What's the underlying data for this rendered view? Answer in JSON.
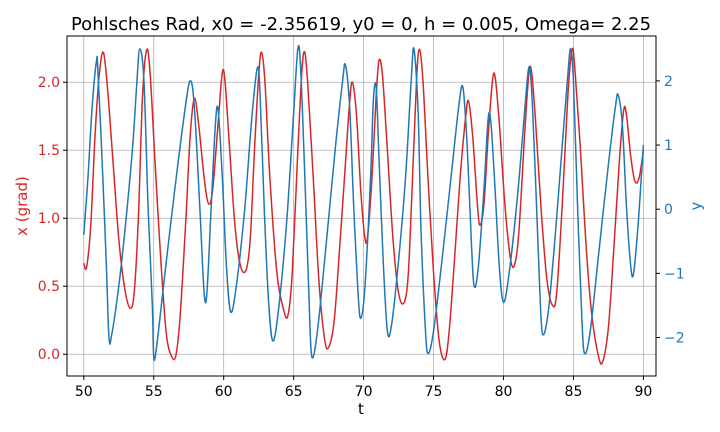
{
  "chart_data": {
    "type": "line",
    "title": "Pohlsches Rad, x0 = -2.35619, y0 = 0, h = 0.005, Omega= 2.25",
    "xlabel": "t",
    "ylabel_left": "x (grad)",
    "ylabel_right": "y",
    "xlim": [
      48.8,
      90.9
    ],
    "ylim_left": [
      -0.16,
      2.34
    ],
    "ylim_right": [
      -2.6,
      2.7
    ],
    "grid": true,
    "x_ticks": [
      50,
      55,
      60,
      65,
      70,
      75,
      80,
      85,
      90
    ],
    "y_left_ticks": [
      0.0,
      0.5,
      1.0,
      1.5,
      2.0
    ],
    "y_right_ticks": [
      -2,
      -1,
      0,
      1,
      2
    ],
    "series": [
      {
        "name": "x",
        "axis": "left",
        "color": "#d62728",
        "points": [
          [
            50.0,
            0.67
          ],
          [
            50.2,
            0.64
          ],
          [
            50.5,
            0.95
          ],
          [
            50.8,
            1.6
          ],
          [
            51.1,
            2.05
          ],
          [
            51.4,
            2.22
          ],
          [
            51.7,
            1.95
          ],
          [
            52.1,
            1.4
          ],
          [
            52.5,
            0.85
          ],
          [
            52.9,
            0.5
          ],
          [
            53.3,
            0.34
          ],
          [
            53.6,
            0.45
          ],
          [
            53.9,
            1.0
          ],
          [
            54.2,
            1.9
          ],
          [
            54.5,
            2.24
          ],
          [
            54.75,
            2.05
          ],
          [
            55.1,
            1.4
          ],
          [
            55.5,
            0.7
          ],
          [
            55.9,
            0.15
          ],
          [
            56.3,
            -0.02
          ],
          [
            56.6,
            0.0
          ],
          [
            56.9,
            0.3
          ],
          [
            57.3,
            1.0
          ],
          [
            57.6,
            1.6
          ],
          [
            57.9,
            1.88
          ],
          [
            58.2,
            1.7
          ],
          [
            58.6,
            1.3
          ],
          [
            58.9,
            1.11
          ],
          [
            59.2,
            1.2
          ],
          [
            59.6,
            1.7
          ],
          [
            59.9,
            2.07
          ],
          [
            60.1,
            2.0
          ],
          [
            60.4,
            1.55
          ],
          [
            60.8,
            0.95
          ],
          [
            61.2,
            0.65
          ],
          [
            61.6,
            0.62
          ],
          [
            61.9,
            0.85
          ],
          [
            62.2,
            1.5
          ],
          [
            62.5,
            2.05
          ],
          [
            62.7,
            2.22
          ],
          [
            62.95,
            2.0
          ],
          [
            63.3,
            1.3
          ],
          [
            63.8,
            0.6
          ],
          [
            64.3,
            0.32
          ],
          [
            64.6,
            0.29
          ],
          [
            64.9,
            0.6
          ],
          [
            65.3,
            1.5
          ],
          [
            65.6,
            2.1
          ],
          [
            65.8,
            2.22
          ],
          [
            66.0,
            2.0
          ],
          [
            66.4,
            1.3
          ],
          [
            66.8,
            0.55
          ],
          [
            67.2,
            0.12
          ],
          [
            67.5,
            0.05
          ],
          [
            67.9,
            0.25
          ],
          [
            68.3,
            0.8
          ],
          [
            68.7,
            1.4
          ],
          [
            69.0,
            1.85
          ],
          [
            69.2,
            2.0
          ],
          [
            69.5,
            1.75
          ],
          [
            69.8,
            1.2
          ],
          [
            70.1,
            0.85
          ],
          [
            70.3,
            0.88
          ],
          [
            70.6,
            1.3
          ],
          [
            70.9,
            1.9
          ],
          [
            71.1,
            2.16
          ],
          [
            71.35,
            2.05
          ],
          [
            71.7,
            1.5
          ],
          [
            72.1,
            0.85
          ],
          [
            72.5,
            0.45
          ],
          [
            72.9,
            0.38
          ],
          [
            73.2,
            0.6
          ],
          [
            73.5,
            1.3
          ],
          [
            73.8,
            2.05
          ],
          [
            74.0,
            2.24
          ],
          [
            74.25,
            2.0
          ],
          [
            74.6,
            1.3
          ],
          [
            75.0,
            0.6
          ],
          [
            75.4,
            0.1
          ],
          [
            75.8,
            -0.04
          ],
          [
            76.1,
            0.15
          ],
          [
            76.5,
            0.7
          ],
          [
            76.9,
            1.3
          ],
          [
            77.3,
            1.75
          ],
          [
            77.5,
            1.86
          ],
          [
            77.8,
            1.6
          ],
          [
            78.1,
            1.15
          ],
          [
            78.3,
            0.95
          ],
          [
            78.6,
            1.1
          ],
          [
            78.9,
            1.6
          ],
          [
            79.2,
            2.0
          ],
          [
            79.4,
            2.04
          ],
          [
            79.7,
            1.7
          ],
          [
            80.1,
            1.1
          ],
          [
            80.5,
            0.7
          ],
          [
            80.8,
            0.66
          ],
          [
            81.1,
            0.9
          ],
          [
            81.5,
            1.6
          ],
          [
            81.8,
            2.05
          ],
          [
            82.0,
            2.08
          ],
          [
            82.3,
            1.7
          ],
          [
            82.7,
            1.05
          ],
          [
            83.1,
            0.55
          ],
          [
            83.5,
            0.36
          ],
          [
            83.8,
            0.45
          ],
          [
            84.2,
            1.1
          ],
          [
            84.6,
            1.9
          ],
          [
            84.9,
            2.24
          ],
          [
            85.1,
            2.1
          ],
          [
            85.5,
            1.5
          ],
          [
            85.9,
            0.8
          ],
          [
            86.3,
            0.3
          ],
          [
            86.8,
            -0.02
          ],
          [
            87.1,
            -0.05
          ],
          [
            87.5,
            0.2
          ],
          [
            87.9,
            0.8
          ],
          [
            88.3,
            1.45
          ],
          [
            88.6,
            1.8
          ],
          [
            88.8,
            1.75
          ],
          [
            89.1,
            1.45
          ],
          [
            89.4,
            1.27
          ],
          [
            89.7,
            1.3
          ],
          [
            90.0,
            1.5
          ]
        ]
      },
      {
        "name": "y",
        "axis": "right",
        "color": "#1f77b4",
        "points": [
          [
            50.0,
            -0.4
          ],
          [
            50.3,
            0.5
          ],
          [
            50.6,
            1.6
          ],
          [
            50.9,
            2.3
          ],
          [
            51.0,
            2.2
          ],
          [
            51.3,
            0.8
          ],
          [
            51.6,
            -0.8
          ],
          [
            51.8,
            -2.0
          ],
          [
            52.0,
            -1.95
          ],
          [
            52.5,
            -1.2
          ],
          [
            53.0,
            -0.2
          ],
          [
            53.5,
            1.0
          ],
          [
            53.8,
            2.0
          ],
          [
            54.0,
            2.5
          ],
          [
            54.3,
            2.0
          ],
          [
            54.6,
            0.0
          ],
          [
            54.9,
            -1.5
          ],
          [
            55.0,
            -2.3
          ],
          [
            55.2,
            -2.15
          ],
          [
            55.8,
            -1.0
          ],
          [
            56.5,
            0.3
          ],
          [
            57.2,
            1.5
          ],
          [
            57.6,
            2.0
          ],
          [
            57.9,
            1.6
          ],
          [
            58.3,
            0.0
          ],
          [
            58.6,
            -1.3
          ],
          [
            58.8,
            -1.3
          ],
          [
            59.1,
            0.0
          ],
          [
            59.4,
            1.3
          ],
          [
            59.6,
            1.55
          ],
          [
            59.9,
            0.5
          ],
          [
            60.2,
            -0.9
          ],
          [
            60.5,
            -1.6
          ],
          [
            60.9,
            -1.2
          ],
          [
            61.5,
            0.0
          ],
          [
            62.0,
            1.4
          ],
          [
            62.4,
            2.2
          ],
          [
            62.6,
            1.8
          ],
          [
            62.9,
            0.0
          ],
          [
            63.2,
            -1.4
          ],
          [
            63.5,
            -2.05
          ],
          [
            63.9,
            -1.6
          ],
          [
            64.5,
            -0.2
          ],
          [
            65.0,
            1.5
          ],
          [
            65.3,
            2.5
          ],
          [
            65.5,
            2.2
          ],
          [
            65.8,
            0.5
          ],
          [
            66.1,
            -1.4
          ],
          [
            66.3,
            -2.3
          ],
          [
            66.7,
            -1.9
          ],
          [
            67.3,
            -0.6
          ],
          [
            68.0,
            1.0
          ],
          [
            68.5,
            2.0
          ],
          [
            68.7,
            2.25
          ],
          [
            69.0,
            1.6
          ],
          [
            69.3,
            0.0
          ],
          [
            69.6,
            -1.3
          ],
          [
            69.8,
            -1.7
          ],
          [
            70.1,
            -1.2
          ],
          [
            70.5,
            0.5
          ],
          [
            70.7,
            1.7
          ],
          [
            70.9,
            1.9
          ],
          [
            71.1,
            0.8
          ],
          [
            71.4,
            -0.8
          ],
          [
            71.7,
            -1.9
          ],
          [
            72.0,
            -1.8
          ],
          [
            72.5,
            -0.8
          ],
          [
            73.0,
            0.5
          ],
          [
            73.4,
            2.0
          ],
          [
            73.6,
            2.5
          ],
          [
            73.9,
            1.5
          ],
          [
            74.1,
            -0.3
          ],
          [
            74.4,
            -1.8
          ],
          [
            74.6,
            -2.25
          ],
          [
            75.0,
            -1.9
          ],
          [
            75.6,
            -0.8
          ],
          [
            76.3,
            0.6
          ],
          [
            76.8,
            1.6
          ],
          [
            77.1,
            1.9
          ],
          [
            77.4,
            1.0
          ],
          [
            77.7,
            -0.5
          ],
          [
            77.9,
            -1.2
          ],
          [
            78.2,
            -0.9
          ],
          [
            78.6,
            0.3
          ],
          [
            78.9,
            1.4
          ],
          [
            79.1,
            1.35
          ],
          [
            79.4,
            0.3
          ],
          [
            79.7,
            -0.9
          ],
          [
            80.0,
            -1.45
          ],
          [
            80.4,
            -1.0
          ],
          [
            81.0,
            0.2
          ],
          [
            81.5,
            1.5
          ],
          [
            81.8,
            2.2
          ],
          [
            82.0,
            1.9
          ],
          [
            82.3,
            0.4
          ],
          [
            82.6,
            -1.3
          ],
          [
            82.8,
            -1.95
          ],
          [
            83.2,
            -1.6
          ],
          [
            83.7,
            -0.4
          ],
          [
            84.2,
            1.0
          ],
          [
            84.6,
            2.1
          ],
          [
            84.8,
            2.5
          ],
          [
            85.0,
            2.0
          ],
          [
            85.3,
            0.0
          ],
          [
            85.6,
            -1.7
          ],
          [
            85.8,
            -2.25
          ],
          [
            86.2,
            -1.9
          ],
          [
            86.8,
            -0.7
          ],
          [
            87.5,
            0.7
          ],
          [
            88.0,
            1.6
          ],
          [
            88.2,
            1.78
          ],
          [
            88.5,
            1.3
          ],
          [
            88.8,
            0.0
          ],
          [
            89.1,
            -0.9
          ],
          [
            89.3,
            -1.0
          ],
          [
            89.6,
            -0.3
          ],
          [
            89.85,
            0.5
          ],
          [
            90.0,
            1.0
          ]
        ]
      }
    ]
  }
}
